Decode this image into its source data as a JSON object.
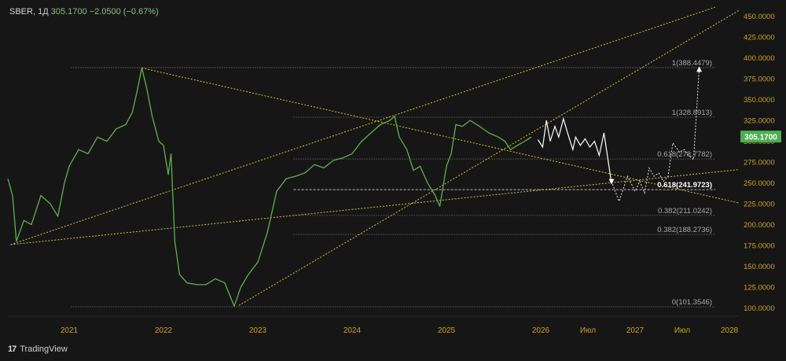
{
  "header": {
    "symbol": "SBER",
    "interval": "1Д",
    "price": "305.1700",
    "change": "−2.0500 (−0.67%)"
  },
  "brand": {
    "logo_text": "17",
    "name": "TradingView"
  },
  "colors": {
    "background": "#161616",
    "price_line": "#5fb04f",
    "projection": "#ffffff",
    "trendline": "#d4c33a",
    "fib_line": "#9e9e9e",
    "axis_text": "#c9a227",
    "last_price_bg": "#4caf50"
  },
  "chart_data": {
    "type": "line",
    "xlim": [
      2020.35,
      2028.1
    ],
    "ylim": [
      92,
      462
    ],
    "y_ticks": [
      "100.0000",
      "125.0000",
      "150.0000",
      "175.0000",
      "200.0000",
      "225.0000",
      "250.0000",
      "275.0000",
      "300.0000",
      "325.0000",
      "350.0000",
      "375.0000",
      "400.0000",
      "425.0000",
      "450.0000"
    ],
    "x_ticks": [
      {
        "label": "2021",
        "x": 2021.0
      },
      {
        "label": "2022",
        "x": 2022.0
      },
      {
        "label": "2023",
        "x": 2023.0
      },
      {
        "label": "2024",
        "x": 2024.0
      },
      {
        "label": "2025",
        "x": 2025.0
      },
      {
        "label": "2026",
        "x": 2026.0
      },
      {
        "label": "Июл",
        "x": 2026.5
      },
      {
        "label": "2027",
        "x": 2027.0
      },
      {
        "label": "Июл",
        "x": 2027.5
      },
      {
        "label": "2028",
        "x": 2028.0
      }
    ],
    "last_price": {
      "value": 305.17,
      "label": "305.1700"
    },
    "price_series": [
      [
        2020.35,
        255
      ],
      [
        2020.4,
        235
      ],
      [
        2020.44,
        180
      ],
      [
        2020.52,
        205
      ],
      [
        2020.6,
        200
      ],
      [
        2020.7,
        235
      ],
      [
        2020.8,
        225
      ],
      [
        2020.88,
        210
      ],
      [
        2020.95,
        250
      ],
      [
        2021.0,
        270
      ],
      [
        2021.1,
        290
      ],
      [
        2021.2,
        285
      ],
      [
        2021.3,
        305
      ],
      [
        2021.4,
        300
      ],
      [
        2021.5,
        315
      ],
      [
        2021.6,
        320
      ],
      [
        2021.67,
        335
      ],
      [
        2021.72,
        360
      ],
      [
        2021.77,
        388
      ],
      [
        2021.82,
        365
      ],
      [
        2021.88,
        330
      ],
      [
        2021.95,
        300
      ],
      [
        2022.0,
        295
      ],
      [
        2022.05,
        260
      ],
      [
        2022.08,
        285
      ],
      [
        2022.12,
        180
      ],
      [
        2022.17,
        140
      ],
      [
        2022.25,
        130
      ],
      [
        2022.35,
        128
      ],
      [
        2022.45,
        128
      ],
      [
        2022.55,
        135
      ],
      [
        2022.65,
        130
      ],
      [
        2022.75,
        102
      ],
      [
        2022.82,
        125
      ],
      [
        2022.9,
        140
      ],
      [
        2023.0,
        155
      ],
      [
        2023.1,
        190
      ],
      [
        2023.2,
        240
      ],
      [
        2023.3,
        255
      ],
      [
        2023.4,
        258
      ],
      [
        2023.5,
        262
      ],
      [
        2023.6,
        272
      ],
      [
        2023.7,
        268
      ],
      [
        2023.8,
        277
      ],
      [
        2023.9,
        280
      ],
      [
        2024.0,
        285
      ],
      [
        2024.1,
        300
      ],
      [
        2024.2,
        310
      ],
      [
        2024.3,
        320
      ],
      [
        2024.4,
        325
      ],
      [
        2024.45,
        330
      ],
      [
        2024.5,
        305
      ],
      [
        2024.58,
        290
      ],
      [
        2024.65,
        265
      ],
      [
        2024.72,
        270
      ],
      [
        2024.8,
        250
      ],
      [
        2024.88,
        235
      ],
      [
        2024.93,
        222
      ],
      [
        2025.0,
        270
      ],
      [
        2025.05,
        285
      ],
      [
        2025.1,
        320
      ],
      [
        2025.17,
        318
      ],
      [
        2025.25,
        325
      ],
      [
        2025.35,
        318
      ],
      [
        2025.45,
        310
      ],
      [
        2025.55,
        305
      ],
      [
        2025.62,
        300
      ],
      [
        2025.68,
        290
      ],
      [
        2025.75,
        295
      ],
      [
        2025.83,
        300
      ],
      [
        2025.9,
        305.17
      ]
    ],
    "projection_solid": [
      [
        2025.97,
        302
      ],
      [
        2026.02,
        293
      ],
      [
        2026.06,
        325
      ],
      [
        2026.1,
        300
      ],
      [
        2026.15,
        318
      ],
      [
        2026.19,
        305
      ],
      [
        2026.24,
        327
      ],
      [
        2026.29,
        308
      ],
      [
        2026.34,
        290
      ],
      [
        2026.37,
        305
      ],
      [
        2026.42,
        295
      ],
      [
        2026.47,
        303
      ],
      [
        2026.52,
        293
      ],
      [
        2026.57,
        300
      ],
      [
        2026.62,
        283
      ],
      [
        2026.67,
        310
      ],
      [
        2026.75,
        250
      ]
    ],
    "projection_dotted": [
      [
        2026.75,
        252
      ],
      [
        2026.83,
        228
      ],
      [
        2026.92,
        258
      ],
      [
        2027.0,
        240
      ],
      [
        2027.05,
        252
      ],
      [
        2027.1,
        238
      ],
      [
        2027.15,
        268
      ],
      [
        2027.2,
        258
      ],
      [
        2027.25,
        262
      ],
      [
        2027.3,
        252
      ],
      [
        2027.35,
        258
      ],
      [
        2027.4,
        298
      ],
      [
        2027.47,
        287
      ],
      [
        2027.52,
        290
      ],
      [
        2027.56,
        284
      ],
      [
        2027.62,
        278
      ],
      [
        2027.68,
        388
      ]
    ],
    "trendlines": [
      [
        [
          2020.38,
          176
        ],
        [
          2027.85,
          461
        ]
      ],
      [
        [
          2022.8,
          103
        ],
        [
          2028.1,
          457
        ]
      ],
      [
        [
          2021.77,
          388
        ],
        [
          2028.1,
          226
        ]
      ],
      [
        [
          2020.38,
          176
        ],
        [
          2028.1,
          266
        ]
      ]
    ],
    "fib_levels": [
      {
        "value": 388.4479,
        "label": "1(388.4479)",
        "x_start": 2021.02,
        "bold": false
      },
      {
        "value": 328.8913,
        "label": "1(328.8913)",
        "x_start": 2023.38,
        "bold": false
      },
      {
        "value": 278.7782,
        "label": "0.618(278.7782)",
        "x_start": 2023.38,
        "bold": false
      },
      {
        "value": 241.9723,
        "label": "0.618(241.9723)",
        "x_start": 2023.38,
        "bold": true
      },
      {
        "value": 211.0242,
        "label": "0.382(211.0242)",
        "x_start": 2023.38,
        "bold": false
      },
      {
        "value": 188.2736,
        "label": "0.382(188.2736)",
        "x_start": 2023.38,
        "bold": false
      },
      {
        "value": 101.3546,
        "label": "0(101.3546)",
        "x_start": 2021.02,
        "bold": false
      }
    ],
    "fib_x_end": 2027.85
  }
}
